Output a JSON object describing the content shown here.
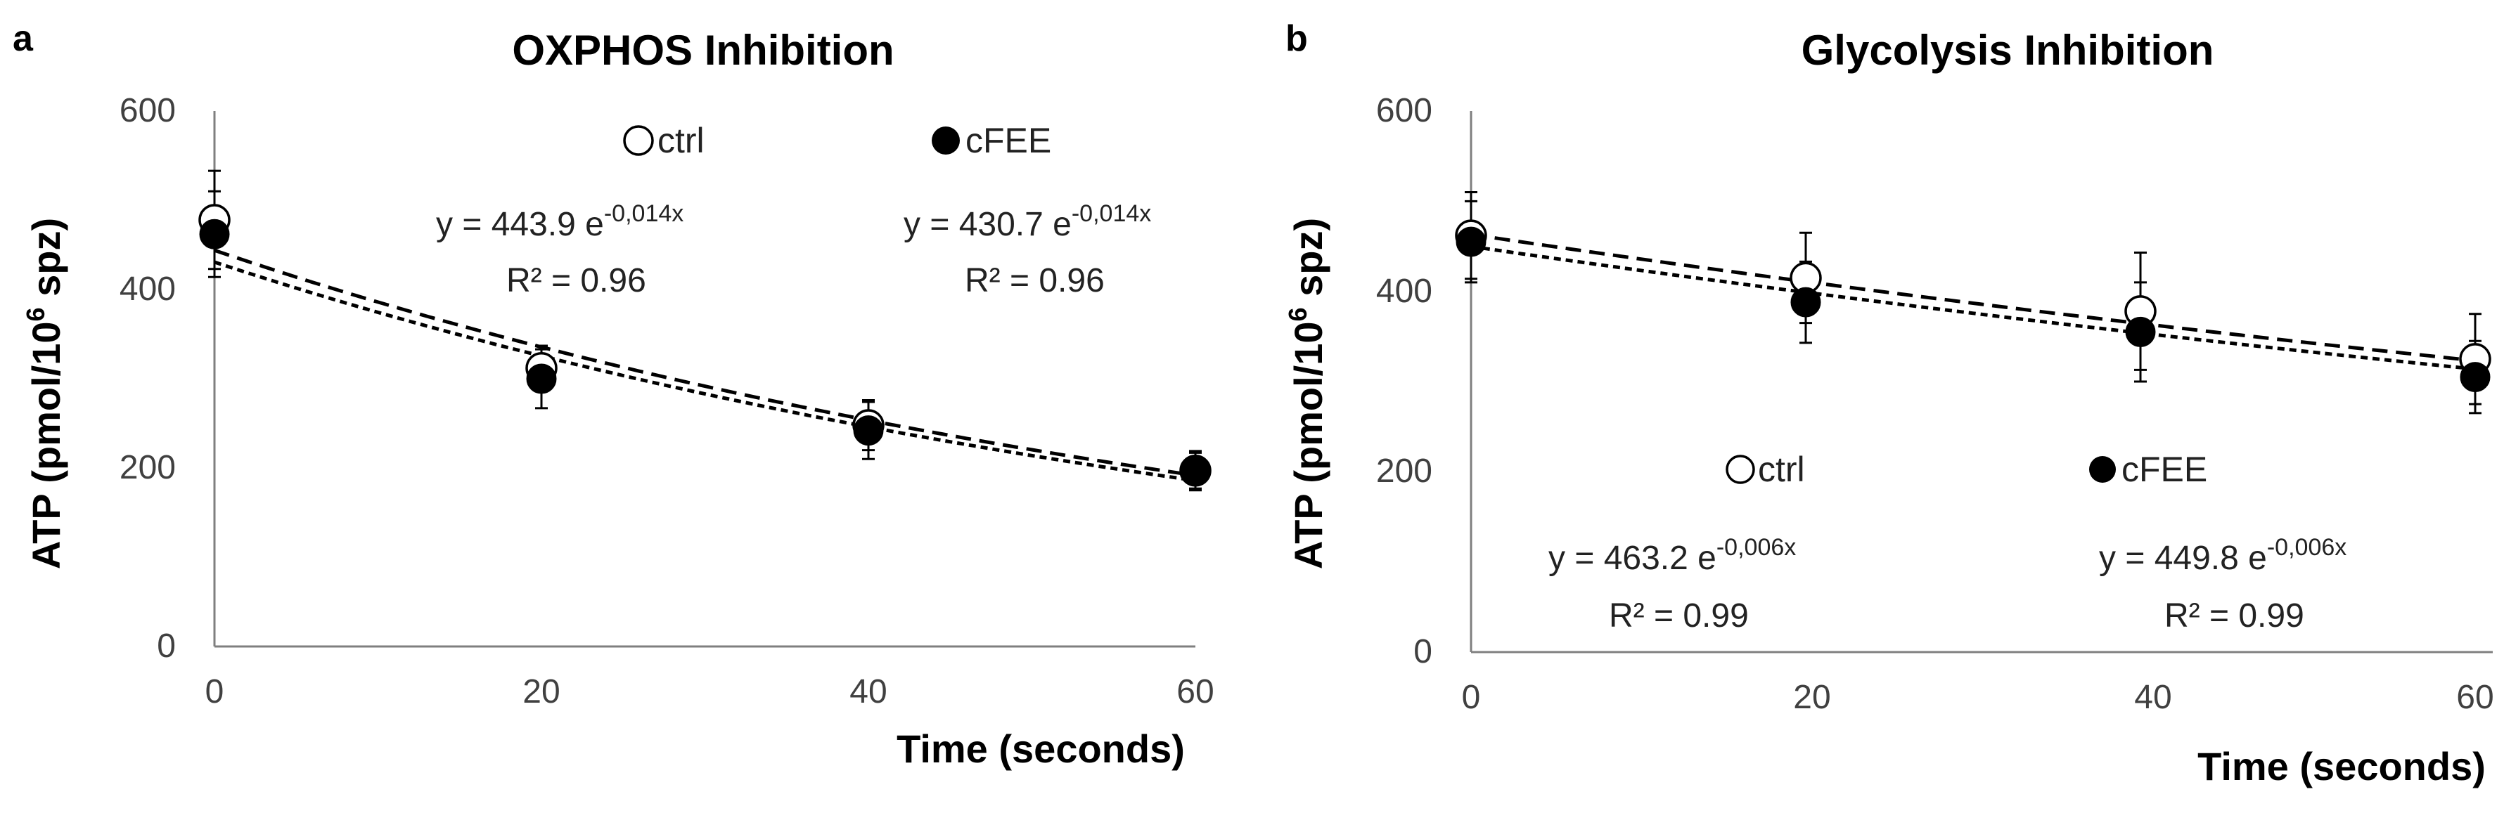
{
  "chart_data": [
    {
      "type": "scatter",
      "panel_letter": "a",
      "title": "OXPHOS Inhibition",
      "xlabel": "Time (seconds)",
      "ylabel": "ATP (pmol/10",
      "ylabel_sup": "6",
      "ylabel_end": " spz)",
      "xlim": [
        0,
        60
      ],
      "ylim": [
        0,
        600
      ],
      "x_ticks": [
        "0",
        "20",
        "40",
        "60"
      ],
      "y_ticks": [
        "0",
        "200",
        "400",
        "600"
      ],
      "x": [
        0,
        20,
        40,
        60
      ],
      "series": [
        {
          "name": "ctrl",
          "marker": "open-circle",
          "values": [
            478,
            312,
            248,
            197
          ],
          "errors": [
            55,
            25,
            28,
            20
          ],
          "fit": {
            "a": 443.9,
            "k": 0.014,
            "dash": "long"
          },
          "equation_main": "y = 443.9 e",
          "equation_exp": "-0,014x",
          "r2": "R² = 0.96"
        },
        {
          "name": "cFEE",
          "marker": "filled-circle",
          "values": [
            462,
            300,
            242,
            197
          ],
          "errors": [
            48,
            33,
            32,
            22
          ],
          "fit": {
            "a": 430.7,
            "k": 0.014,
            "dash": "short"
          },
          "equation_main": "y = 430.7 e",
          "equation_exp": "-0,014x",
          "r2": "R² = 0.96"
        }
      ]
    },
    {
      "type": "scatter",
      "panel_letter": "b",
      "title": "Glycolysis Inhibition",
      "xlabel": "Time (seconds)",
      "ylabel": "ATP (pmol/10",
      "ylabel_sup": "6",
      "ylabel_end": " spz)",
      "xlim": [
        0,
        60
      ],
      "ylim": [
        0,
        600
      ],
      "x_ticks": [
        "0",
        "20",
        "40",
        "60"
      ],
      "y_ticks": [
        "0",
        "200",
        "400",
        "600"
      ],
      "x": [
        0,
        20,
        40,
        60
      ],
      "series": [
        {
          "name": "ctrl",
          "marker": "open-circle",
          "values": [
            462,
            415,
            378,
            325
          ],
          "errors": [
            48,
            50,
            65,
            50
          ],
          "fit": {
            "a": 463.2,
            "k": 0.006,
            "dash": "long"
          },
          "equation_main": "y = 463.2 e",
          "equation_exp": "-0,006x",
          "r2": "R² = 0.99"
        },
        {
          "name": "cFEE",
          "marker": "filled-circle",
          "values": [
            455,
            388,
            355,
            305
          ],
          "errors": [
            45,
            45,
            55,
            40
          ],
          "fit": {
            "a": 449.8,
            "k": 0.006,
            "dash": "short"
          },
          "equation_main": "y = 449.8 e",
          "equation_exp": "-0,006x",
          "r2": "R² = 0.99"
        }
      ]
    }
  ]
}
